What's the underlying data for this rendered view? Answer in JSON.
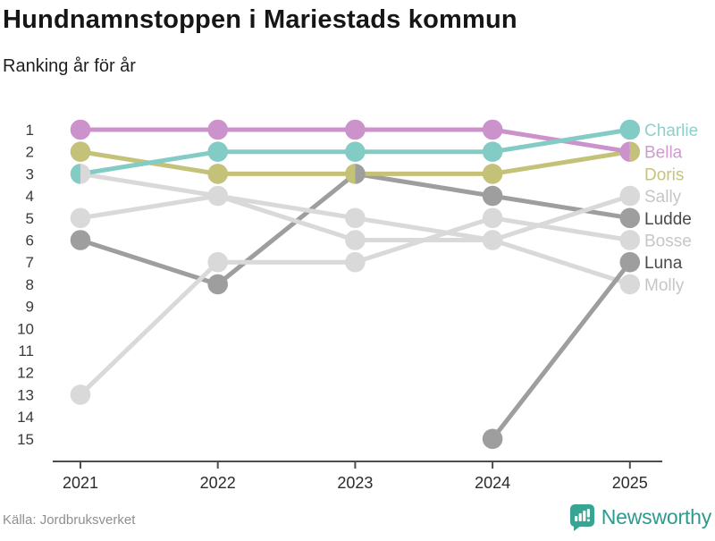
{
  "header": {
    "title": "Hundnamnstoppen i Mariestads kommun",
    "subtitle": "Ranking år för år"
  },
  "footer": {
    "source": "Källa: Jordbruksverket",
    "brand": "Newsworthy",
    "brand_color": "#2d9a8d"
  },
  "chart_data": {
    "type": "line",
    "variant": "bump-ranking-chart",
    "title": "Hundnamnstoppen i Mariestads kommun",
    "subtitle": "Ranking år för år",
    "x": [
      2021,
      2022,
      2023,
      2024,
      2025
    ],
    "xlabel": "",
    "ylabel": "Ranking",
    "ylim": [
      1,
      15
    ],
    "y_axis_inverted": true,
    "y_ticks": [
      1,
      2,
      3,
      4,
      5,
      6,
      7,
      8,
      9,
      10,
      11,
      12,
      13,
      14,
      15
    ],
    "grid": false,
    "legend_position": "right-inline-labels",
    "axis_color": "#4d4d4d",
    "tick_label_color": "#2b2b2b",
    "series": [
      {
        "name": "Charlie",
        "color": "#83ccc6",
        "label_color": "#8fd0ca",
        "z": 8,
        "label_row": 1,
        "values": [
          3,
          2,
          2,
          2,
          1
        ]
      },
      {
        "name": "Bella",
        "color": "#cb92cc",
        "label_color": "#cf9ad0",
        "z": 7,
        "label_row": 2,
        "values": [
          1,
          1,
          1,
          1,
          2
        ]
      },
      {
        "name": "Doris",
        "color": "#c4c178",
        "label_color": "#c6c37c",
        "z": 6,
        "label_row": 3,
        "values": [
          2,
          3,
          3,
          3,
          2
        ]
      },
      {
        "name": "Sally",
        "color": "#d9d9d9",
        "label_color": "#c6c6c6",
        "z": 4,
        "label_row": 4,
        "values": [
          5,
          4,
          6,
          6,
          4
        ]
      },
      {
        "name": "Ludde",
        "color": "#9e9e9e",
        "label_color": "#4a4a4a",
        "z": 1,
        "label_row": 5,
        "values": [
          6,
          8,
          3,
          4,
          5
        ]
      },
      {
        "name": "Bosse",
        "color": "#d9d9d9",
        "label_color": "#c6c6c6",
        "z": 3,
        "label_row": 6,
        "values": [
          13,
          7,
          7,
          5,
          6
        ]
      },
      {
        "name": "Luna",
        "color": "#9e9e9e",
        "label_color": "#4a4a4a",
        "z": 5,
        "label_row": 7,
        "values": [
          null,
          null,
          null,
          15,
          7
        ]
      },
      {
        "name": "Molly",
        "color": "#d9d9d9",
        "label_color": "#c6c6c6",
        "z": 2,
        "label_row": 8,
        "values": [
          3,
          4,
          5,
          6,
          8
        ]
      }
    ]
  }
}
